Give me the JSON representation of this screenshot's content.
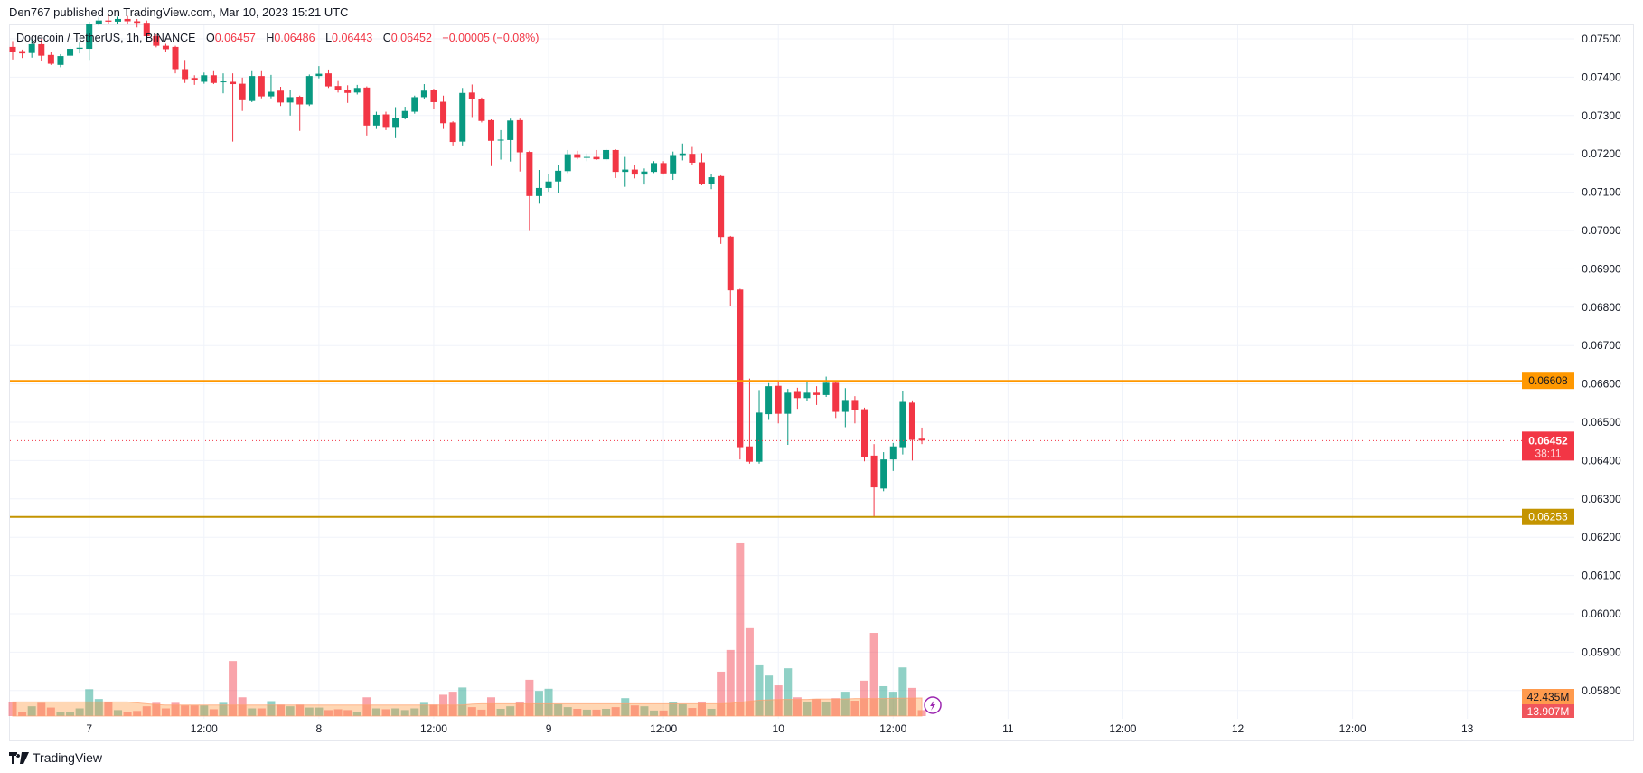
{
  "header": {
    "published": "Den767 published on TradingView.com, Mar 10, 2023 15:21 UTC"
  },
  "legend": {
    "symbol": "Dogecoin / TetherUS, 1h, BINANCE",
    "o_label": "O",
    "o": "0.06457",
    "h_label": "H",
    "h": "0.06486",
    "l_label": "L",
    "l": "0.06443",
    "c_label": "C",
    "c": "0.06452",
    "change": "−0.00005 (−0.08%)"
  },
  "footer": {
    "brand": "TradingView"
  },
  "colors": {
    "up": "#089981",
    "down": "#f23645",
    "resistance": "#ff9800",
    "support": "#c49400",
    "volume_ma": "#ff8c28",
    "alert": "#9c27b0"
  },
  "chart_data": {
    "type": "candlestick",
    "interval": "1h",
    "y_ticks": [
      "0.07500",
      "0.07400",
      "0.07300",
      "0.07200",
      "0.07100",
      "0.07000",
      "0.06900",
      "0.06800",
      "0.06700",
      "0.06600",
      "0.06500",
      "0.06400",
      "0.06300",
      "0.06200",
      "0.06100",
      "0.06000",
      "0.05900",
      "0.05800"
    ],
    "ylim": [
      0.058,
      0.0757
    ],
    "x_ticks": [
      "7",
      "12:00",
      "8",
      "12:00",
      "9",
      "12:00",
      "10",
      "12:00",
      "11",
      "12:00",
      "12",
      "12:00",
      "13"
    ],
    "grid": true,
    "horizontal_lines": [
      {
        "price": 0.06608,
        "label": "0.06608",
        "color": "#ff9800"
      },
      {
        "price": 0.06253,
        "label": "0.06253",
        "color": "#c49400"
      }
    ],
    "last_price": {
      "price": 0.06452,
      "label": "0.06452",
      "countdown": "38:11"
    },
    "volume_labels": {
      "ma": "42.435M",
      "last": "13.907M"
    },
    "ohlc": [
      [
        0.07479,
        0.07494,
        0.07446,
        0.07465
      ],
      [
        0.07468,
        0.07472,
        0.0745,
        0.07462
      ],
      [
        0.07463,
        0.075,
        0.07451,
        0.07486
      ],
      [
        0.07486,
        0.075,
        0.07442,
        0.07456
      ],
      [
        0.07458,
        0.07465,
        0.07432,
        0.07435
      ],
      [
        0.07432,
        0.0746,
        0.07426,
        0.07455
      ],
      [
        0.07456,
        0.0748,
        0.0745,
        0.07474
      ],
      [
        0.07474,
        0.0749,
        0.07462,
        0.07477
      ],
      [
        0.07474,
        0.07545,
        0.07445,
        0.0754
      ],
      [
        0.0754,
        0.07556,
        0.07535,
        0.07548
      ],
      [
        0.07548,
        0.0756,
        0.07538,
        0.07545
      ],
      [
        0.07545,
        0.07558,
        0.0754,
        0.07552
      ],
      [
        0.07552,
        0.0756,
        0.07538,
        0.07546
      ],
      [
        0.07546,
        0.07552,
        0.0753,
        0.07542
      ],
      [
        0.07542,
        0.07548,
        0.07505,
        0.07507
      ],
      [
        0.07507,
        0.07512,
        0.07478,
        0.07482
      ],
      [
        0.07482,
        0.07487,
        0.07465,
        0.07473
      ],
      [
        0.07479,
        0.07482,
        0.0741,
        0.07421
      ],
      [
        0.07421,
        0.07445,
        0.07385,
        0.07395
      ],
      [
        0.07398,
        0.07405,
        0.0738,
        0.07393
      ],
      [
        0.07388,
        0.07412,
        0.07383,
        0.07405
      ],
      [
        0.07405,
        0.07418,
        0.07382,
        0.07385
      ],
      [
        0.07387,
        0.0741,
        0.07358,
        0.07389
      ],
      [
        0.07388,
        0.0741,
        0.07232,
        0.07382
      ],
      [
        0.07383,
        0.07399,
        0.07312,
        0.0734
      ],
      [
        0.07338,
        0.07418,
        0.07335,
        0.07403
      ],
      [
        0.07403,
        0.07418,
        0.07345,
        0.0735
      ],
      [
        0.0735,
        0.07406,
        0.07345,
        0.07362
      ],
      [
        0.07365,
        0.07375,
        0.07325,
        0.07334
      ],
      [
        0.07334,
        0.07366,
        0.073,
        0.07348
      ],
      [
        0.07349,
        0.07352,
        0.0726,
        0.07329
      ],
      [
        0.07329,
        0.07407,
        0.07325,
        0.07403
      ],
      [
        0.07403,
        0.07429,
        0.07397,
        0.07409
      ],
      [
        0.0741,
        0.0742,
        0.07372,
        0.07376
      ],
      [
        0.07377,
        0.0739,
        0.0736,
        0.07366
      ],
      [
        0.07367,
        0.07379,
        0.07333,
        0.07359
      ],
      [
        0.0736,
        0.0738,
        0.07355,
        0.07372
      ],
      [
        0.07373,
        0.07376,
        0.07248,
        0.07274
      ],
      [
        0.07274,
        0.0731,
        0.07265,
        0.07302
      ],
      [
        0.07303,
        0.0731,
        0.07262,
        0.07268
      ],
      [
        0.07268,
        0.07322,
        0.07241,
        0.07294
      ],
      [
        0.07294,
        0.07323,
        0.0729,
        0.07312
      ],
      [
        0.0731,
        0.07352,
        0.07305,
        0.07348
      ],
      [
        0.07348,
        0.07382,
        0.07344,
        0.07365
      ],
      [
        0.07367,
        0.0737,
        0.07316,
        0.07335
      ],
      [
        0.07336,
        0.07352,
        0.07265,
        0.0728
      ],
      [
        0.07282,
        0.07285,
        0.07222,
        0.07231
      ],
      [
        0.07232,
        0.07372,
        0.07222,
        0.07359
      ],
      [
        0.0736,
        0.07381,
        0.07296,
        0.07343
      ],
      [
        0.07344,
        0.07347,
        0.07282,
        0.07286
      ],
      [
        0.07288,
        0.0729,
        0.07168,
        0.07234
      ],
      [
        0.07235,
        0.07262,
        0.07185,
        0.07237
      ],
      [
        0.07236,
        0.07292,
        0.0718,
        0.07287
      ],
      [
        0.07288,
        0.07292,
        0.07154,
        0.07204
      ],
      [
        0.07205,
        0.07208,
        0.07001,
        0.0709
      ],
      [
        0.0709,
        0.07158,
        0.0707,
        0.07111
      ],
      [
        0.07111,
        0.07147,
        0.07101,
        0.07128
      ],
      [
        0.07128,
        0.0717,
        0.07099,
        0.07156
      ],
      [
        0.07155,
        0.0721,
        0.0715,
        0.07199
      ],
      [
        0.07199,
        0.07208,
        0.07186,
        0.0719
      ],
      [
        0.0719,
        0.07201,
        0.07181,
        0.07192
      ],
      [
        0.07192,
        0.0721,
        0.07184,
        0.07186
      ],
      [
        0.07186,
        0.07213,
        0.07183,
        0.0721
      ],
      [
        0.0721,
        0.07212,
        0.07137,
        0.07153
      ],
      [
        0.07153,
        0.07192,
        0.07114,
        0.07159
      ],
      [
        0.07159,
        0.0717,
        0.07136,
        0.07146
      ],
      [
        0.07146,
        0.07162,
        0.0712,
        0.07154
      ],
      [
        0.07153,
        0.07181,
        0.0715,
        0.07176
      ],
      [
        0.07176,
        0.07181,
        0.07146,
        0.07149
      ],
      [
        0.07149,
        0.07206,
        0.07132,
        0.07197
      ],
      [
        0.07197,
        0.07227,
        0.07183,
        0.07201
      ],
      [
        0.072,
        0.07218,
        0.0717,
        0.07177
      ],
      [
        0.07178,
        0.07202,
        0.07118,
        0.07122
      ],
      [
        0.07122,
        0.07148,
        0.07108,
        0.07139
      ],
      [
        0.07142,
        0.07144,
        0.06965,
        0.06983
      ],
      [
        0.06984,
        0.06986,
        0.06802,
        0.06844
      ],
      [
        0.06846,
        0.06848,
        0.06403,
        0.06435
      ],
      [
        0.06437,
        0.06614,
        0.06392,
        0.06397
      ],
      [
        0.06397,
        0.06584,
        0.06392,
        0.06525
      ],
      [
        0.06521,
        0.06602,
        0.06506,
        0.06594
      ],
      [
        0.06595,
        0.06609,
        0.06497,
        0.06522
      ],
      [
        0.06522,
        0.06587,
        0.06441,
        0.06577
      ],
      [
        0.06579,
        0.0659,
        0.06535,
        0.06563
      ],
      [
        0.06563,
        0.06605,
        0.06555,
        0.06577
      ],
      [
        0.06577,
        0.06594,
        0.06545,
        0.06571
      ],
      [
        0.06571,
        0.06619,
        0.06566,
        0.06603
      ],
      [
        0.06603,
        0.06609,
        0.06511,
        0.06527
      ],
      [
        0.06527,
        0.06589,
        0.06487,
        0.06558
      ],
      [
        0.06558,
        0.06568,
        0.06497,
        0.06532
      ],
      [
        0.06534,
        0.06538,
        0.06398,
        0.0641
      ],
      [
        0.06413,
        0.06443,
        0.06253,
        0.0633
      ],
      [
        0.06327,
        0.06422,
        0.0632,
        0.06403
      ],
      [
        0.06403,
        0.06446,
        0.06373,
        0.06437
      ],
      [
        0.06435,
        0.06582,
        0.06416,
        0.06553
      ],
      [
        0.06551,
        0.06557,
        0.064,
        0.06454
      ],
      [
        0.06457,
        0.06486,
        0.06443,
        0.06452
      ]
    ],
    "volume_millions": [
      33,
      10,
      23,
      31,
      20,
      10,
      10,
      18,
      63,
      40,
      33,
      14,
      10,
      12,
      23,
      31,
      18,
      31,
      25,
      25,
      25,
      16,
      31,
      129,
      44,
      18,
      18,
      35,
      27,
      23,
      27,
      20,
      20,
      14,
      16,
      14,
      10,
      44,
      18,
      16,
      18,
      14,
      18,
      31,
      27,
      50,
      57,
      67,
      21,
      15,
      44,
      17,
      23,
      34,
      85,
      59,
      64,
      28,
      21,
      17,
      15,
      15,
      17,
      21,
      42,
      25,
      23,
      13,
      13,
      32,
      28,
      19,
      34,
      17,
      104,
      155,
      405,
      206,
      121,
      95,
      72,
      112,
      44,
      34,
      40,
      32,
      42,
      57,
      36,
      83,
      195,
      70,
      57,
      114,
      66,
      13.907
    ],
    "volume_ma_millions": [
      33,
      33,
      33,
      33,
      33,
      33,
      33,
      33,
      33,
      33,
      33,
      33,
      33,
      31,
      29,
      27,
      26,
      26,
      26,
      26,
      26,
      26,
      26,
      26,
      26,
      26,
      26,
      26,
      26,
      26,
      26,
      26,
      26,
      26,
      26,
      26,
      26,
      26,
      26,
      26,
      26,
      26,
      26,
      26,
      26,
      26,
      26,
      26,
      28,
      29,
      29,
      29,
      29,
      29,
      29,
      29,
      29,
      29,
      29,
      29,
      29,
      29,
      29,
      29,
      29,
      29,
      29,
      29,
      29,
      29,
      29,
      29,
      29,
      29,
      29,
      30,
      32,
      35,
      37,
      38,
      39,
      39,
      39,
      39,
      40,
      40,
      40,
      40,
      41,
      41,
      41,
      41,
      42,
      42,
      42.2,
      42.435
    ]
  }
}
